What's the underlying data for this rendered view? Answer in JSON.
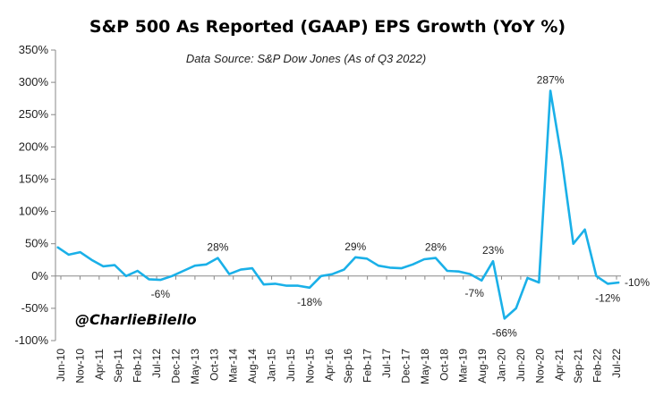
{
  "chart_data": {
    "type": "line",
    "title": "S&P 500 As Reported (GAAP) EPS Growth (YoY %)",
    "subtitle": "Data Source: S&P Dow Jones (As of Q3 2022)",
    "watermark": "@CharlieBilello",
    "ylim": [
      -100,
      350
    ],
    "ytick_step": 50,
    "ytick_labels": [
      "350%",
      "300%",
      "250%",
      "200%",
      "150%",
      "100%",
      "50%",
      "0%",
      "-50%",
      "-100%"
    ],
    "x_tick_labels": [
      "Jun-10",
      "Nov-10",
      "Apr-11",
      "Sep-11",
      "Feb-12",
      "Jul-12",
      "Dec-12",
      "May-13",
      "Oct-13",
      "Mar-14",
      "Aug-14",
      "Jan-15",
      "Jun-15",
      "Nov-15",
      "Apr-16",
      "Sep-16",
      "Feb-17",
      "Jul-17",
      "Dec-17",
      "May-18",
      "Oct-18",
      "Mar-19",
      "Aug-19",
      "Jan-20",
      "Jun-20",
      "Nov-20",
      "Apr-21",
      "Sep-21",
      "Feb-22",
      "Jul-22"
    ],
    "series": [
      {
        "color": "#1ab0e8",
        "values": [
          45,
          33,
          37,
          25,
          15,
          17,
          0,
          8,
          -5,
          -6,
          0,
          8,
          16,
          18,
          28,
          3,
          10,
          12,
          -13,
          -12,
          -15,
          -15,
          -18,
          0,
          3,
          10,
          29,
          27,
          16,
          13,
          12,
          18,
          26,
          28,
          8,
          7,
          3,
          -7,
          23,
          -66,
          -50,
          -3,
          -10,
          287,
          180,
          50,
          72,
          0,
          -12,
          -10
        ]
      }
    ],
    "point_labels": [
      {
        "index": 9,
        "text": "-6%"
      },
      {
        "index": 14,
        "text": "28%"
      },
      {
        "index": 22,
        "text": "-18%"
      },
      {
        "index": 26,
        "text": "29%"
      },
      {
        "index": 33,
        "text": "28%"
      },
      {
        "index": 37,
        "text": "-7%"
      },
      {
        "index": 38,
        "text": "23%"
      },
      {
        "index": 39,
        "text": "-66%"
      },
      {
        "index": 43,
        "text": "287%"
      },
      {
        "index": 48,
        "text": "-12%"
      },
      {
        "index": 49,
        "text": "-10%"
      }
    ],
    "grid": false,
    "legend": "none"
  }
}
